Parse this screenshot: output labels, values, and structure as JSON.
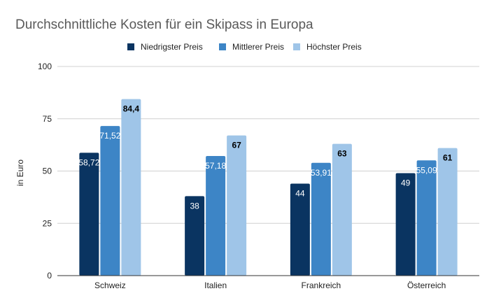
{
  "colors": {
    "series": [
      "#0a3461",
      "#3d85c6",
      "#9fc5e8"
    ],
    "label_on_dark": "#ffffff",
    "label_on_light": "#000000"
  },
  "chart_data": {
    "type": "bar",
    "title": "Durchschnittliche Kosten für ein Skipass in Europa",
    "xlabel": "",
    "ylabel": "in Euro",
    "categories": [
      "Schweiz",
      "Italien",
      "Frankreich",
      "Österreich"
    ],
    "ylim": [
      0,
      100
    ],
    "yticks": [
      0,
      25,
      50,
      75,
      100
    ],
    "ytick_labels": [
      "0",
      "25",
      "50",
      "75",
      "100"
    ],
    "grid": true,
    "legend_position": "top",
    "series": [
      {
        "name": "Niedrigster Preis",
        "values": [
          58.72,
          38,
          44,
          49
        ],
        "labels": [
          "58,72",
          "38",
          "44",
          "49"
        ],
        "label_weight": "normal"
      },
      {
        "name": "Mittlerer Preis",
        "values": [
          71.52,
          57.18,
          53.91,
          55.09
        ],
        "labels": [
          "71,52",
          "57,18",
          "53,91",
          "55,09"
        ],
        "label_weight": "normal"
      },
      {
        "name": "Höchster Preis",
        "values": [
          84.4,
          67,
          63,
          61
        ],
        "labels": [
          "84,4",
          "67",
          "63",
          "61"
        ],
        "label_weight": "bold"
      }
    ]
  }
}
